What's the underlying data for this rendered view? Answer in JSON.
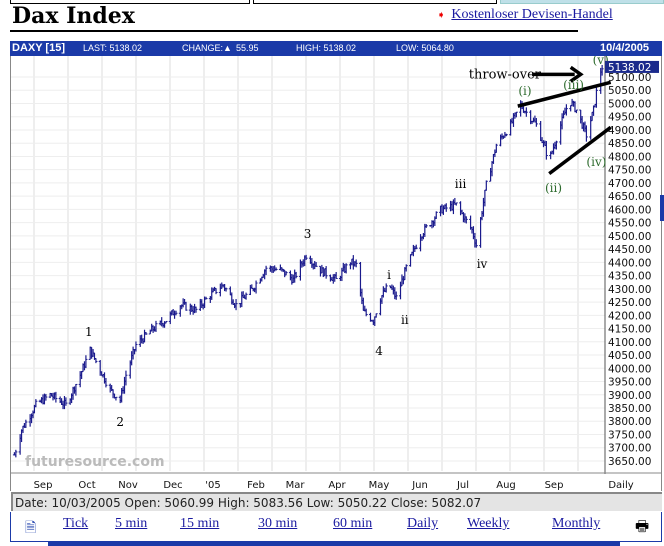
{
  "page": {
    "title": "Dax Index",
    "promo_link": "Kostenloser Devisen-Handel"
  },
  "header": {
    "symbol": "DAXY [15]",
    "last": "LAST: 5138.02",
    "change_label": "CHANGE:",
    "change_value": "55.95",
    "high": "HIGH: 5138.02",
    "low": "LOW: 5064.80",
    "date": "10/4/2005"
  },
  "info": "Date: 10/03/2005  Open: 5060.99  High: 5083.56  Low: 5050.22  Close: 5082.07",
  "links": [
    "Tick",
    "5 min",
    "15 min",
    "30 min",
    "60 min",
    "Daily",
    "Weekly",
    "Monthly"
  ],
  "colors": {
    "header": "#1b3aa8",
    "bars": "#1a1a8c",
    "wave_labels": "#2e6b2e",
    "price_box": "#1b2a8c"
  },
  "chart_data": {
    "type": "ohlc",
    "title": "",
    "period": "Daily",
    "watermark": "futuresource.com",
    "current_price": "5138.02",
    "ylim": [
      3625,
      5150
    ],
    "yticks": [
      5100,
      5050,
      5000,
      4950,
      4900,
      4850,
      4800,
      4750,
      4700,
      4650,
      4600,
      4550,
      4500,
      4450,
      4400,
      4350,
      4300,
      4250,
      4200,
      4150,
      4100,
      4050,
      4000,
      3950,
      3900,
      3850,
      3800,
      3750,
      3700,
      3650
    ],
    "xticks": [
      "Sep",
      "Oct",
      "Nov",
      "Dec",
      "'05",
      "Feb",
      "Mar",
      "Apr",
      "May",
      "Jun",
      "Jul",
      "Aug",
      "Sep",
      "Daily"
    ],
    "xlim": [
      "2004-08-18",
      "2005-10-10"
    ],
    "grid": true,
    "approx_closes": [
      [
        "2004-08-19",
        3673
      ],
      [
        "2004-08-24",
        3767
      ],
      [
        "2004-09-03",
        3861
      ],
      [
        "2004-09-13",
        3900
      ],
      [
        "2004-09-24",
        3861
      ],
      [
        "2004-10-04",
        3975
      ],
      [
        "2004-10-11",
        4069
      ],
      [
        "2004-10-18",
        3994
      ],
      [
        "2004-10-25",
        3918
      ],
      [
        "2004-11-01",
        3880
      ],
      [
        "2004-11-05",
        3975
      ],
      [
        "2004-11-12",
        4088
      ],
      [
        "2004-11-23",
        4145
      ],
      [
        "2004-12-03",
        4182
      ],
      [
        "2004-12-13",
        4239
      ],
      [
        "2004-12-24",
        4220
      ],
      [
        "2005-01-03",
        4277
      ],
      [
        "2005-01-12",
        4315
      ],
      [
        "2005-01-21",
        4239
      ],
      [
        "2005-02-01",
        4296
      ],
      [
        "2005-02-11",
        4379
      ],
      [
        "2005-02-21",
        4371
      ],
      [
        "2005-03-02",
        4334
      ],
      [
        "2005-03-11",
        4428
      ],
      [
        "2005-03-21",
        4371
      ],
      [
        "2005-04-01",
        4334
      ],
      [
        "2005-04-11",
        4402
      ],
      [
        "2005-04-15",
        4390
      ],
      [
        "2005-04-20",
        4213
      ],
      [
        "2005-04-27",
        4182
      ],
      [
        "2005-05-02",
        4266
      ],
      [
        "2005-05-08",
        4315
      ],
      [
        "2005-05-13",
        4266
      ],
      [
        "2005-05-20",
        4379
      ],
      [
        "2005-05-30",
        4503
      ],
      [
        "2005-06-13",
        4598
      ],
      [
        "2005-06-24",
        4617
      ],
      [
        "2005-07-05",
        4522
      ],
      [
        "2005-07-08",
        4466
      ],
      [
        "2005-07-15",
        4692
      ],
      [
        "2005-07-22",
        4843
      ],
      [
        "2005-08-01",
        4919
      ],
      [
        "2005-08-08",
        4994
      ],
      [
        "2005-08-19",
        4919
      ],
      [
        "2005-08-28",
        4786
      ],
      [
        "2005-09-05",
        4919
      ],
      [
        "2005-09-11",
        5013
      ],
      [
        "2005-09-16",
        4975
      ],
      [
        "2005-09-23",
        4881
      ],
      [
        "2005-09-28",
        4975
      ],
      [
        "2005-10-02",
        5108
      ],
      [
        "2005-10-04",
        5138
      ]
    ],
    "annotations": [
      {
        "text": "1",
        "date": "2004-10-10",
        "price": 4122
      },
      {
        "text": "2",
        "date": "2004-11-01",
        "price": 3782
      },
      {
        "text": "3",
        "date": "2005-03-12",
        "price": 4492
      },
      {
        "text": "4",
        "date": "2005-05-01",
        "price": 4050
      },
      {
        "text": "i",
        "date": "2005-05-08",
        "price": 4337
      },
      {
        "text": "ii",
        "date": "2005-05-19",
        "price": 4167
      },
      {
        "text": "iii",
        "date": "2005-06-27",
        "price": 4681
      },
      {
        "text": "iv",
        "date": "2005-07-12",
        "price": 4379
      },
      {
        "text": "(i)",
        "date": "2005-08-11",
        "price": 5032
      },
      {
        "text": "(ii)",
        "date": "2005-08-31",
        "price": 4666
      },
      {
        "text": "(iii)",
        "date": "2005-09-14",
        "price": 5054
      },
      {
        "text": "(iv)",
        "date": "2005-09-30",
        "price": 4764
      },
      {
        "text": "(v)",
        "date": "2005-10-03",
        "price": 5149
      },
      {
        "text": "throw-over",
        "date": "2005-07-28",
        "price": 5095
      }
    ],
    "trendlines": [
      {
        "from": [
          "2005-08-06",
          4990
        ],
        "to": [
          "2005-10-10",
          5080
        ]
      },
      {
        "from": [
          "2005-08-28",
          4735
        ],
        "to": [
          "2005-10-10",
          4910
        ]
      }
    ],
    "arrow": {
      "from": [
        "2005-08-16",
        5110
      ],
      "to": [
        "2005-09-19",
        5110
      ]
    }
  }
}
